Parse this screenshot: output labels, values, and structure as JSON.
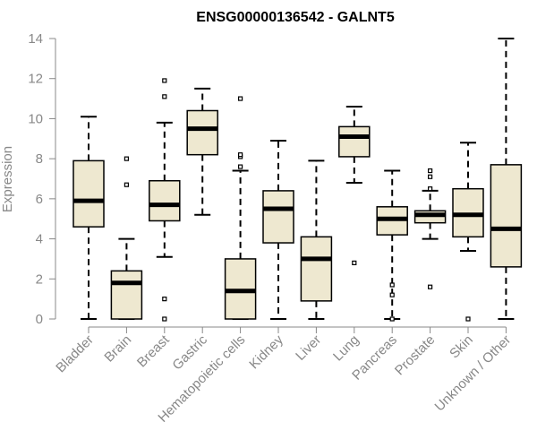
{
  "chart_data": {
    "type": "boxplot",
    "title": "ENSG00000136542 - GALNT5",
    "xlabel": "",
    "ylabel": "Expression",
    "ylim": [
      0,
      14
    ],
    "yticks": [
      0,
      2,
      4,
      6,
      8,
      10,
      12,
      14
    ],
    "grid": false,
    "colors": {
      "box_fill": "#eee8d0",
      "box_stroke": "#000000",
      "axis": "#888888"
    },
    "categories": [
      "Bladder",
      "Brain",
      "Breast",
      "Gastric",
      "Hematopoietic cells",
      "Kidney",
      "Liver",
      "Lung",
      "Pancreas",
      "Prostate",
      "Skin",
      "Unknown / Other"
    ],
    "boxes": [
      {
        "name": "Bladder",
        "whisker_low": 0.0,
        "q1": 4.6,
        "median": 5.9,
        "q3": 7.9,
        "whisker_high": 10.1,
        "outliers": []
      },
      {
        "name": "Brain",
        "whisker_low": 0.0,
        "q1": 0.0,
        "median": 1.8,
        "q3": 2.4,
        "whisker_high": 4.0,
        "outliers": [
          6.7,
          8.0
        ]
      },
      {
        "name": "Breast",
        "whisker_low": 3.1,
        "q1": 4.9,
        "median": 5.7,
        "q3": 6.9,
        "whisker_high": 9.8,
        "outliers": [
          0.0,
          1.0,
          11.1,
          11.9
        ]
      },
      {
        "name": "Gastric",
        "whisker_low": 5.2,
        "q1": 8.2,
        "median": 9.5,
        "q3": 10.4,
        "whisker_high": 11.5,
        "outliers": []
      },
      {
        "name": "Hematopoietic cells",
        "whisker_low": 0.0,
        "q1": 0.0,
        "median": 1.4,
        "q3": 3.0,
        "whisker_high": 7.4,
        "outliers": [
          7.6,
          8.1,
          8.2,
          11.0
        ]
      },
      {
        "name": "Kidney",
        "whisker_low": 0.0,
        "q1": 3.8,
        "median": 5.5,
        "q3": 6.4,
        "whisker_high": 8.9,
        "outliers": []
      },
      {
        "name": "Liver",
        "whisker_low": 0.0,
        "q1": 0.9,
        "median": 3.0,
        "q3": 4.1,
        "whisker_high": 7.9,
        "outliers": []
      },
      {
        "name": "Lung",
        "whisker_low": 6.8,
        "q1": 8.1,
        "median": 9.1,
        "q3": 9.6,
        "whisker_high": 10.6,
        "outliers": [
          2.8
        ]
      },
      {
        "name": "Pancreas",
        "whisker_low": 0.0,
        "q1": 4.2,
        "median": 5.0,
        "q3": 5.6,
        "whisker_high": 7.4,
        "outliers": [
          0.0,
          1.2,
          1.7
        ]
      },
      {
        "name": "Prostate",
        "whisker_low": 4.0,
        "q1": 4.8,
        "median": 5.2,
        "q3": 5.4,
        "whisker_high": 6.4,
        "outliers": [
          1.6,
          6.5,
          7.1,
          7.4
        ]
      },
      {
        "name": "Skin",
        "whisker_low": 3.4,
        "q1": 4.1,
        "median": 5.2,
        "q3": 6.5,
        "whisker_high": 8.8,
        "outliers": [
          0.0
        ]
      },
      {
        "name": "Unknown / Other",
        "whisker_low": 0.0,
        "q1": 2.6,
        "median": 4.5,
        "q3": 7.7,
        "whisker_high": 14.0,
        "outliers": []
      }
    ]
  }
}
